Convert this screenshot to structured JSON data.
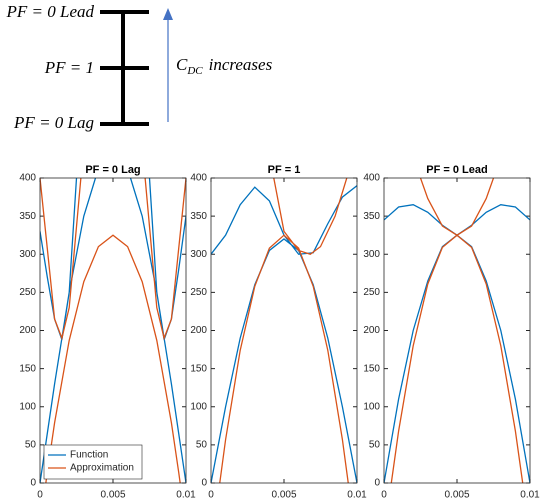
{
  "diagram": {
    "levels": [
      "PF = 0 Lead",
      "PF = 1",
      "PF = 0 Lag"
    ],
    "arrow_label": {
      "symbol": "C",
      "subscript": "DC",
      "text": "increases"
    }
  },
  "chart_data": [
    {
      "type": "line",
      "title": "PF = 0 Lag",
      "xlim": [
        0,
        0.01
      ],
      "ylim": [
        0,
        400
      ],
      "xticks": [
        0,
        0.005,
        0.01
      ],
      "yticks": [
        0,
        50,
        100,
        150,
        200,
        250,
        300,
        350,
        400
      ],
      "legend": "lower left",
      "series": [
        {
          "name": "Function",
          "color": "#0072bd",
          "x": [
            0,
            0.0005,
            0.001,
            0.0015,
            0.002,
            0.0025,
            null,
            0.0075,
            0.008,
            0.0085,
            0.009,
            0.0095,
            0.01,
            null,
            0,
            0.001,
            0.002,
            0.003,
            0.0038,
            null,
            0.0062,
            0.007,
            0.008,
            0.009,
            0.01
          ],
          "values": [
            330,
            270,
            215,
            188,
            250,
            400,
            null,
            400,
            250,
            188,
            215,
            280,
            350,
            null,
            0,
            130,
            250,
            350,
            400,
            null,
            400,
            350,
            250,
            130,
            0
          ]
        },
        {
          "name": "Approximation",
          "color": "#d95319",
          "x": [
            0.0004,
            0.0005,
            0.001,
            0.002,
            0.003,
            0.004,
            0.005,
            0.006,
            0.007,
            0.008,
            0.009,
            0.0095,
            0.0096,
            null,
            0,
            0.001,
            0.0015,
            0.002,
            0.0028,
            null,
            0.0072,
            0.008,
            0.0085,
            0.009,
            0.01
          ],
          "values": [
            0,
            14,
            79,
            187,
            264,
            310,
            325,
            310,
            264,
            187,
            79,
            14,
            0,
            null,
            400,
            215,
            190,
            230,
            400,
            null,
            400,
            230,
            190,
            215,
            400
          ]
        }
      ]
    },
    {
      "type": "line",
      "title": "PF = 1",
      "xlim": [
        0,
        0.01
      ],
      "ylim": [
        0,
        400
      ],
      "xticks": [
        0,
        0.005,
        0.01
      ],
      "yticks": [
        0,
        50,
        100,
        150,
        200,
        250,
        300,
        350,
        400
      ],
      "series": [
        {
          "color": "#0072bd",
          "x": [
            0,
            0.001,
            0.002,
            0.003,
            0.004,
            0.005,
            0.006,
            0.007,
            0.008,
            0.009,
            0.01,
            null,
            0,
            0.001,
            0.002,
            0.003,
            0.004,
            0.005,
            0.006,
            0.007,
            0.008,
            0.009,
            0.01
          ],
          "values": [
            300,
            325,
            365,
            388,
            370,
            325,
            300,
            302,
            340,
            375,
            390,
            null,
            0,
            100,
            190,
            260,
            305,
            320,
            305,
            260,
            190,
            100,
            0
          ]
        },
        {
          "color": "#d95319",
          "x": [
            0.0006,
            0.001,
            0.002,
            0.003,
            0.004,
            0.005,
            0.006,
            0.007,
            0.008,
            0.009,
            0.0094,
            null,
            0.0043,
            0.005,
            0.006,
            0.0068,
            0.0075,
            0.0085,
            0.0093
          ],
          "values": [
            0,
            57,
            174,
            258,
            308,
            325,
            308,
            258,
            174,
            57,
            0,
            null,
            400,
            330,
            305,
            300,
            310,
            350,
            400
          ]
        }
      ]
    },
    {
      "type": "line",
      "title": "PF = 0 Lead",
      "xlim": [
        0,
        0.01
      ],
      "ylim": [
        0,
        400
      ],
      "xticks": [
        0,
        0.005,
        0.01
      ],
      "yticks": [
        0,
        50,
        100,
        150,
        200,
        250,
        300,
        350,
        400
      ],
      "series": [
        {
          "color": "#0072bd",
          "x": [
            0,
            0.001,
            0.002,
            0.003,
            0.004,
            0.005,
            0.006,
            0.007,
            0.008,
            0.009,
            0.01,
            null,
            0,
            0.001,
            0.002,
            0.003,
            0.004,
            0.005,
            0.006,
            0.007,
            0.008,
            0.009,
            0.01
          ],
          "values": [
            345,
            362,
            365,
            355,
            338,
            325,
            338,
            355,
            365,
            362,
            345,
            null,
            0,
            110,
            200,
            265,
            310,
            325,
            310,
            265,
            200,
            110,
            0
          ]
        },
        {
          "color": "#d95319",
          "x": [
            0.0005,
            0.001,
            0.002,
            0.003,
            0.004,
            0.005,
            0.006,
            0.007,
            0.008,
            0.009,
            0.0095,
            null,
            0.0025,
            0.003,
            0.004,
            0.005,
            0.006,
            0.007,
            0.0075
          ],
          "values": [
            0,
            68,
            180,
            261,
            309,
            325,
            309,
            261,
            180,
            68,
            0,
            null,
            400,
            373,
            337,
            325,
            337,
            373,
            400
          ]
        }
      ]
    }
  ]
}
